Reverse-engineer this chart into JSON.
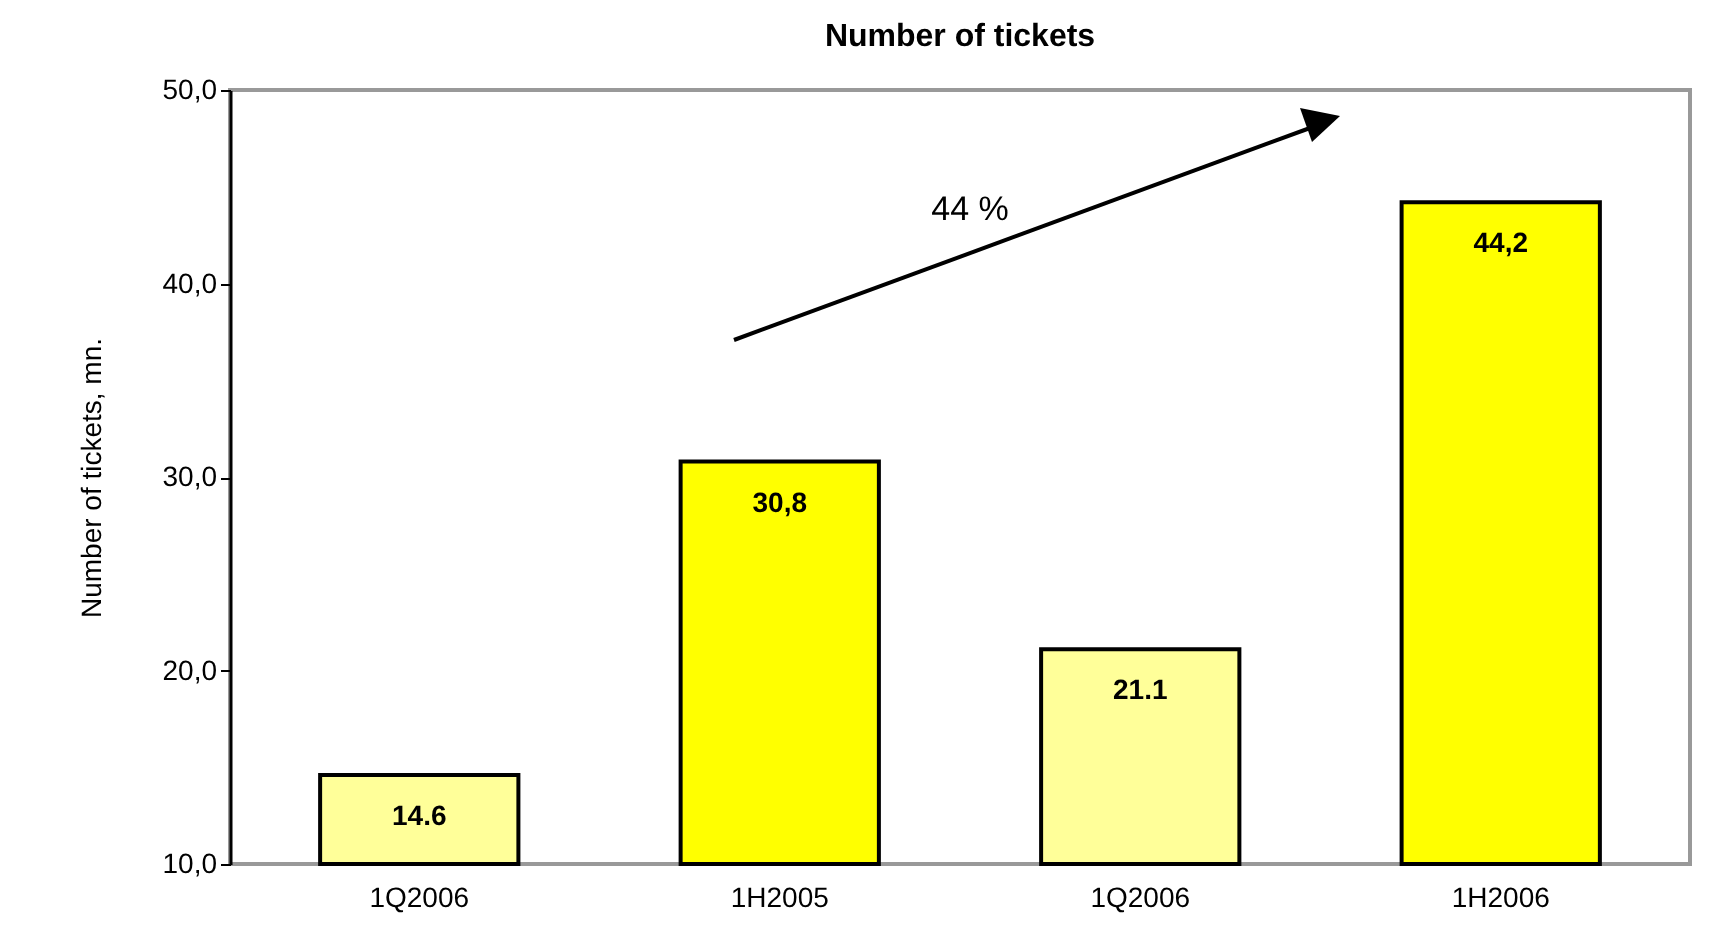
{
  "chart_data": {
    "type": "bar",
    "title": "Number of tickets",
    "ylabel": "Number of tickets, mn.",
    "categories": [
      "1Q2006",
      "1H2005",
      "1Q2006",
      "1H2006"
    ],
    "values": [
      14.6,
      30.8,
      21.1,
      44.2
    ],
    "value_labels": [
      "14.6",
      "30,8",
      "21.1",
      "44,2"
    ],
    "colors": [
      "#ffff99",
      "#ffff00",
      "#ffff99",
      "#ffff00"
    ],
    "ylim": [
      10,
      50
    ],
    "yticks": [
      {
        "value": 10,
        "label": "10,0"
      },
      {
        "value": 20,
        "label": "20,0"
      },
      {
        "value": 30,
        "label": "30,0"
      },
      {
        "value": 40,
        "label": "40,0"
      },
      {
        "value": 50,
        "label": "50,0"
      }
    ],
    "annotations": [
      "44 %"
    ],
    "grid": false,
    "legend": false
  }
}
